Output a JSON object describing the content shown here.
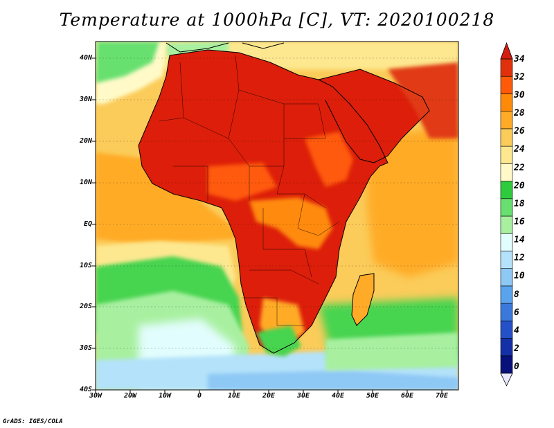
{
  "title": "Temperature at 1000hPa [C], VT: 2020100218",
  "credit": "GrADS: IGES/COLA",
  "map": {
    "type": "heatmap",
    "variable": "Temperature at 1000hPa",
    "units": "C",
    "valid_time": "2020100218",
    "lon_range": [
      -30,
      76
    ],
    "lat_range": [
      -40,
      46
    ],
    "lat_ticks": [
      {
        "value": 40,
        "label": "40N"
      },
      {
        "value": 30,
        "label": "30N"
      },
      {
        "value": 20,
        "label": "20N"
      },
      {
        "value": 10,
        "label": "10N"
      },
      {
        "value": 0,
        "label": "EQ"
      },
      {
        "value": -10,
        "label": "10S"
      },
      {
        "value": -20,
        "label": "20S"
      },
      {
        "value": -30,
        "label": "30S"
      },
      {
        "value": -40,
        "label": "40S"
      }
    ],
    "lon_ticks": [
      {
        "value": -30,
        "label": "30W"
      },
      {
        "value": -20,
        "label": "20W"
      },
      {
        "value": -10,
        "label": "10W"
      },
      {
        "value": 0,
        "label": "0"
      },
      {
        "value": 10,
        "label": "10E"
      },
      {
        "value": 20,
        "label": "20E"
      },
      {
        "value": 30,
        "label": "30E"
      },
      {
        "value": 40,
        "label": "40E"
      },
      {
        "value": 50,
        "label": "50E"
      },
      {
        "value": 60,
        "label": "60E"
      },
      {
        "value": 70,
        "label": "70E"
      }
    ]
  },
  "colorbar": {
    "labels": [
      "34",
      "32",
      "30",
      "28",
      "26",
      "24",
      "22",
      "20",
      "18",
      "16",
      "14",
      "12",
      "10",
      "8",
      "6",
      "4",
      "2",
      "0"
    ],
    "colors": [
      "#e0300c",
      "#ff5a0a",
      "#ff8a0a",
      "#ffab28",
      "#fbcc5a",
      "#fde890",
      "#fffac8",
      "#2ecc3c",
      "#68e070",
      "#a8f0a0",
      "#e2fdfd",
      "#b4e2fa",
      "#8ec8f5",
      "#5aa4ee",
      "#3a78dc",
      "#2450c8",
      "#1430a6",
      "#08107a"
    ],
    "over_color": "#d41e12",
    "under_color": "#e8e8ff"
  },
  "colors": {
    "ocean_temperate": "#fbcc5a",
    "land_hot": "#dc1e0a",
    "southern_ocean_cold": "#8ec8f5",
    "green_band": "#46d450",
    "coast": "#000000"
  }
}
